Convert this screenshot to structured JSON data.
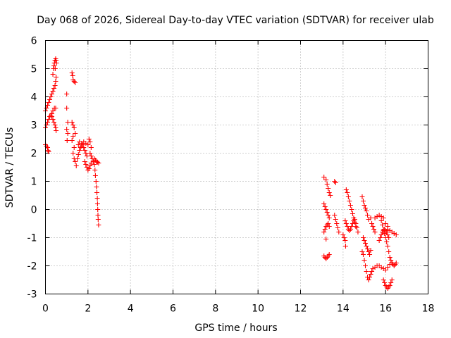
{
  "chart_data": {
    "type": "scatter",
    "title": "Day 068 of 2026, Sidereal Day-to-day VTEC variation (SDTVAR) for receiver ulab",
    "xlabel": "GPS time / hours",
    "ylabel": "SDTVAR / TECUs",
    "xlim": [
      0,
      18
    ],
    "ylim": [
      -3,
      6
    ],
    "xticks": [
      0,
      2,
      4,
      6,
      8,
      10,
      12,
      14,
      16,
      18
    ],
    "yticks": [
      -3,
      -2,
      -1,
      0,
      1,
      2,
      3,
      4,
      5,
      6
    ],
    "grid": true,
    "marker": "+",
    "colors": {
      "points": "#ff0000",
      "frame": "#000000",
      "grid": "#a0a0a0"
    },
    "series": [
      {
        "name": "SDTVAR",
        "points": [
          [
            0.0,
            2.3
          ],
          [
            0.05,
            2.25
          ],
          [
            0.1,
            2.2
          ],
          [
            0.12,
            2.1
          ],
          [
            0.15,
            2.05
          ],
          [
            0.0,
            2.9
          ],
          [
            0.05,
            3.0
          ],
          [
            0.1,
            3.1
          ],
          [
            0.15,
            3.2
          ],
          [
            0.2,
            3.3
          ],
          [
            0.25,
            3.35
          ],
          [
            0.3,
            3.3
          ],
          [
            0.35,
            3.2
          ],
          [
            0.4,
            3.1
          ],
          [
            0.45,
            3.0
          ],
          [
            0.48,
            2.9
          ],
          [
            0.5,
            2.8
          ],
          [
            0.3,
            3.4
          ],
          [
            0.35,
            3.5
          ],
          [
            0.42,
            3.6
          ],
          [
            0.48,
            3.6
          ],
          [
            0.0,
            3.5
          ],
          [
            0.05,
            3.6
          ],
          [
            0.1,
            3.7
          ],
          [
            0.15,
            3.8
          ],
          [
            0.2,
            3.9
          ],
          [
            0.25,
            4.0
          ],
          [
            0.3,
            4.1
          ],
          [
            0.35,
            4.2
          ],
          [
            0.4,
            4.3
          ],
          [
            0.45,
            4.4
          ],
          [
            0.48,
            4.55
          ],
          [
            0.5,
            4.7
          ],
          [
            0.35,
            4.8
          ],
          [
            0.38,
            5.0
          ],
          [
            0.4,
            5.1
          ],
          [
            0.42,
            5.2
          ],
          [
            0.45,
            5.3
          ],
          [
            0.48,
            5.35
          ],
          [
            0.5,
            5.3
          ],
          [
            0.52,
            5.2
          ],
          [
            0.46,
            5.0
          ],
          [
            1.0,
            4.1
          ],
          [
            1.0,
            3.6
          ],
          [
            1.05,
            3.1
          ],
          [
            1.0,
            2.85
          ],
          [
            1.05,
            2.7
          ],
          [
            1.02,
            2.45
          ],
          [
            1.25,
            4.85
          ],
          [
            1.28,
            4.75
          ],
          [
            1.3,
            4.6
          ],
          [
            1.35,
            4.55
          ],
          [
            1.4,
            4.5
          ],
          [
            1.25,
            3.1
          ],
          [
            1.3,
            3.0
          ],
          [
            1.35,
            2.9
          ],
          [
            1.4,
            2.7
          ],
          [
            1.3,
            2.6
          ],
          [
            1.25,
            2.45
          ],
          [
            1.35,
            2.2
          ],
          [
            1.3,
            2.0
          ],
          [
            1.35,
            1.8
          ],
          [
            1.4,
            1.7
          ],
          [
            1.45,
            1.55
          ],
          [
            1.5,
            1.8
          ],
          [
            1.55,
            1.95
          ],
          [
            1.6,
            2.1
          ],
          [
            1.65,
            2.2
          ],
          [
            1.7,
            2.25
          ],
          [
            1.75,
            2.3
          ],
          [
            1.8,
            2.2
          ],
          [
            1.85,
            2.1
          ],
          [
            1.9,
            2.0
          ],
          [
            1.95,
            1.9
          ],
          [
            1.55,
            2.3
          ],
          [
            1.6,
            2.4
          ],
          [
            1.7,
            2.35
          ],
          [
            1.8,
            2.4
          ],
          [
            1.9,
            2.35
          ],
          [
            2.0,
            2.3
          ],
          [
            2.05,
            2.5
          ],
          [
            2.1,
            2.4
          ],
          [
            2.15,
            2.2
          ],
          [
            1.85,
            1.7
          ],
          [
            1.9,
            1.6
          ],
          [
            1.95,
            1.5
          ],
          [
            2.0,
            1.4
          ],
          [
            2.05,
            1.45
          ],
          [
            2.1,
            1.55
          ],
          [
            2.15,
            1.65
          ],
          [
            2.1,
            2.0
          ],
          [
            2.15,
            1.9
          ],
          [
            2.2,
            1.8
          ],
          [
            2.25,
            1.7
          ],
          [
            2.3,
            1.6
          ],
          [
            2.33,
            1.4
          ],
          [
            2.35,
            1.2
          ],
          [
            2.38,
            1.0
          ],
          [
            2.4,
            0.8
          ],
          [
            2.42,
            0.6
          ],
          [
            2.44,
            0.4
          ],
          [
            2.45,
            0.2
          ],
          [
            2.46,
            0.0
          ],
          [
            2.47,
            -0.2
          ],
          [
            2.48,
            -0.35
          ],
          [
            2.5,
            -0.55
          ],
          [
            2.3,
            1.8
          ],
          [
            2.35,
            1.75
          ],
          [
            2.4,
            1.7
          ],
          [
            2.45,
            1.68
          ],
          [
            2.5,
            1.65
          ],
          [
            13.1,
            1.15
          ],
          [
            13.2,
            1.05
          ],
          [
            13.25,
            0.9
          ],
          [
            13.3,
            0.75
          ],
          [
            13.35,
            0.6
          ],
          [
            13.4,
            0.5
          ],
          [
            13.6,
            1.0
          ],
          [
            13.65,
            0.95
          ],
          [
            13.1,
            0.2
          ],
          [
            13.15,
            0.1
          ],
          [
            13.2,
            0.0
          ],
          [
            13.25,
            -0.1
          ],
          [
            13.3,
            -0.2
          ],
          [
            13.35,
            -0.3
          ],
          [
            13.1,
            -0.8
          ],
          [
            13.15,
            -0.7
          ],
          [
            13.2,
            -0.6
          ],
          [
            13.25,
            -0.55
          ],
          [
            13.3,
            -0.5
          ],
          [
            13.35,
            -0.6
          ],
          [
            13.2,
            -1.05
          ],
          [
            13.1,
            -1.65
          ],
          [
            13.15,
            -1.7
          ],
          [
            13.2,
            -1.75
          ],
          [
            13.25,
            -1.7
          ],
          [
            13.3,
            -1.65
          ],
          [
            13.35,
            -1.6
          ],
          [
            13.6,
            -0.2
          ],
          [
            13.65,
            -0.35
          ],
          [
            13.7,
            -0.5
          ],
          [
            13.75,
            -0.65
          ],
          [
            13.8,
            -0.8
          ],
          [
            14.0,
            -0.9
          ],
          [
            14.05,
            -1.0
          ],
          [
            14.1,
            -1.1
          ],
          [
            14.12,
            -1.3
          ],
          [
            14.15,
            0.7
          ],
          [
            14.2,
            0.6
          ],
          [
            14.25,
            0.45
          ],
          [
            14.3,
            0.3
          ],
          [
            14.35,
            0.15
          ],
          [
            14.4,
            0.0
          ],
          [
            14.45,
            -0.15
          ],
          [
            14.5,
            -0.3
          ],
          [
            14.55,
            -0.45
          ],
          [
            14.6,
            -0.6
          ],
          [
            14.1,
            -0.4
          ],
          [
            14.15,
            -0.5
          ],
          [
            14.2,
            -0.6
          ],
          [
            14.25,
            -0.7
          ],
          [
            14.3,
            -0.75
          ],
          [
            14.35,
            -0.7
          ],
          [
            14.4,
            -0.6
          ],
          [
            14.45,
            -0.5
          ],
          [
            14.5,
            -0.4
          ],
          [
            14.55,
            -0.35
          ],
          [
            14.6,
            -0.5
          ],
          [
            14.65,
            -0.65
          ],
          [
            14.7,
            -0.8
          ],
          [
            14.9,
            0.45
          ],
          [
            14.95,
            0.3
          ],
          [
            15.0,
            0.15
          ],
          [
            15.05,
            0.05
          ],
          [
            15.1,
            -0.05
          ],
          [
            15.15,
            -0.2
          ],
          [
            15.2,
            -0.35
          ],
          [
            14.95,
            -1.0
          ],
          [
            15.0,
            -1.1
          ],
          [
            15.05,
            -1.2
          ],
          [
            15.1,
            -1.3
          ],
          [
            15.15,
            -1.4
          ],
          [
            15.2,
            -1.5
          ],
          [
            15.25,
            -1.6
          ],
          [
            15.3,
            -1.45
          ],
          [
            14.9,
            -1.5
          ],
          [
            14.95,
            -1.6
          ],
          [
            15.0,
            -1.8
          ],
          [
            15.05,
            -2.0
          ],
          [
            15.1,
            -2.2
          ],
          [
            15.15,
            -2.4
          ],
          [
            15.2,
            -2.5
          ],
          [
            15.25,
            -2.4
          ],
          [
            15.3,
            -2.3
          ],
          [
            15.35,
            -2.2
          ],
          [
            15.4,
            -2.1
          ],
          [
            15.5,
            -2.05
          ],
          [
            15.6,
            -2.0
          ],
          [
            15.7,
            -2.0
          ],
          [
            15.8,
            -2.05
          ],
          [
            15.9,
            -2.1
          ],
          [
            16.0,
            -2.15
          ],
          [
            16.1,
            -2.05
          ],
          [
            16.2,
            -1.95
          ],
          [
            15.3,
            -0.3
          ],
          [
            15.35,
            -0.5
          ],
          [
            15.4,
            -0.6
          ],
          [
            15.45,
            -0.7
          ],
          [
            15.5,
            -0.8
          ],
          [
            15.5,
            -0.3
          ],
          [
            15.6,
            -0.25
          ],
          [
            15.7,
            -0.2
          ],
          [
            15.8,
            -0.25
          ],
          [
            15.9,
            -0.3
          ],
          [
            16.0,
            -0.5
          ],
          [
            16.1,
            -0.6
          ],
          [
            15.8,
            -0.4
          ],
          [
            15.85,
            -0.55
          ],
          [
            15.9,
            -0.7
          ],
          [
            15.95,
            -0.85
          ],
          [
            16.0,
            -1.0
          ],
          [
            16.05,
            -1.15
          ],
          [
            16.1,
            -1.3
          ],
          [
            16.15,
            -1.5
          ],
          [
            16.2,
            -1.7
          ],
          [
            16.25,
            -1.8
          ],
          [
            16.3,
            -1.9
          ],
          [
            15.7,
            -1.1
          ],
          [
            15.75,
            -1.0
          ],
          [
            15.8,
            -0.9
          ],
          [
            15.85,
            -0.8
          ],
          [
            15.9,
            -0.75
          ],
          [
            15.95,
            -0.7
          ],
          [
            16.0,
            -0.75
          ],
          [
            16.05,
            -0.8
          ],
          [
            16.1,
            -0.9
          ],
          [
            16.15,
            -1.0
          ],
          [
            16.0,
            -2.7
          ],
          [
            16.05,
            -2.75
          ],
          [
            16.1,
            -2.8
          ],
          [
            16.15,
            -2.75
          ],
          [
            16.2,
            -2.7
          ],
          [
            16.25,
            -2.6
          ],
          [
            16.3,
            -2.5
          ],
          [
            15.95,
            -2.6
          ],
          [
            15.9,
            -2.5
          ],
          [
            16.1,
            -0.7
          ],
          [
            16.2,
            -0.75
          ],
          [
            16.3,
            -0.8
          ],
          [
            16.4,
            -0.85
          ],
          [
            16.5,
            -0.9
          ],
          [
            16.3,
            -1.9
          ],
          [
            16.35,
            -1.95
          ],
          [
            16.4,
            -2.0
          ],
          [
            16.45,
            -1.95
          ],
          [
            16.5,
            -1.9
          ]
        ]
      }
    ]
  }
}
